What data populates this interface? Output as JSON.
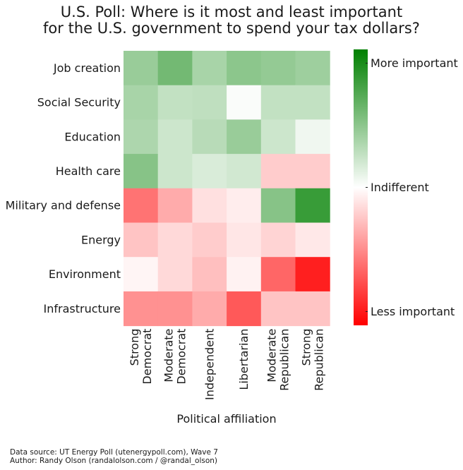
{
  "title_line1": "U.S. Poll: Where is it most and least important",
  "title_line2": "for the U.S. government to spend your tax dollars?",
  "footer": {
    "source": "Data source: UT Energy Poll (utenergypoll.com), Wave 7",
    "author": "Author: Randy Olson (randalolson.com / @randal_olson)"
  },
  "colors": {
    "high": "#008000",
    "mid": "#ffffff",
    "low": "#ff0000"
  },
  "chart_data": {
    "type": "heatmap",
    "title": "U.S. Poll: Where is it most and least important for the U.S. government to spend your tax dollars?",
    "xlabel": "Political affiliation",
    "ylabel": "",
    "x_categories": [
      [
        "Strong",
        "Democrat"
      ],
      [
        "Moderate",
        "Democrat"
      ],
      [
        "Independent"
      ],
      [
        "Libertarian"
      ],
      [
        "Moderate",
        "Republican"
      ],
      [
        "Strong",
        "Republican"
      ]
    ],
    "y_categories": [
      "Job creation",
      "Social Security",
      "Education",
      "Health care",
      "Military and defense",
      "Energy",
      "Environment",
      "Infrastructure"
    ],
    "value_range": [
      -1,
      1
    ],
    "colorbar": {
      "labels": [
        "More important",
        "Indifferent",
        "Less important"
      ],
      "label_values": [
        0.9,
        0,
        -0.9
      ]
    },
    "values": [
      [
        0.4,
        0.55,
        0.34,
        0.45,
        0.42,
        0.38
      ],
      [
        0.34,
        0.24,
        0.25,
        0.02,
        0.24,
        0.24
      ],
      [
        0.32,
        0.2,
        0.28,
        0.4,
        0.2,
        0.06
      ],
      [
        0.47,
        0.2,
        0.15,
        0.18,
        -0.2,
        -0.2
      ],
      [
        -0.55,
        -0.33,
        -0.12,
        -0.07,
        0.47,
        0.78
      ],
      [
        -0.23,
        -0.15,
        -0.2,
        -0.1,
        -0.17,
        -0.09
      ],
      [
        -0.04,
        -0.15,
        -0.25,
        -0.05,
        -0.6,
        -0.88
      ],
      [
        -0.43,
        -0.43,
        -0.33,
        -0.65,
        -0.23,
        -0.23
      ]
    ]
  }
}
